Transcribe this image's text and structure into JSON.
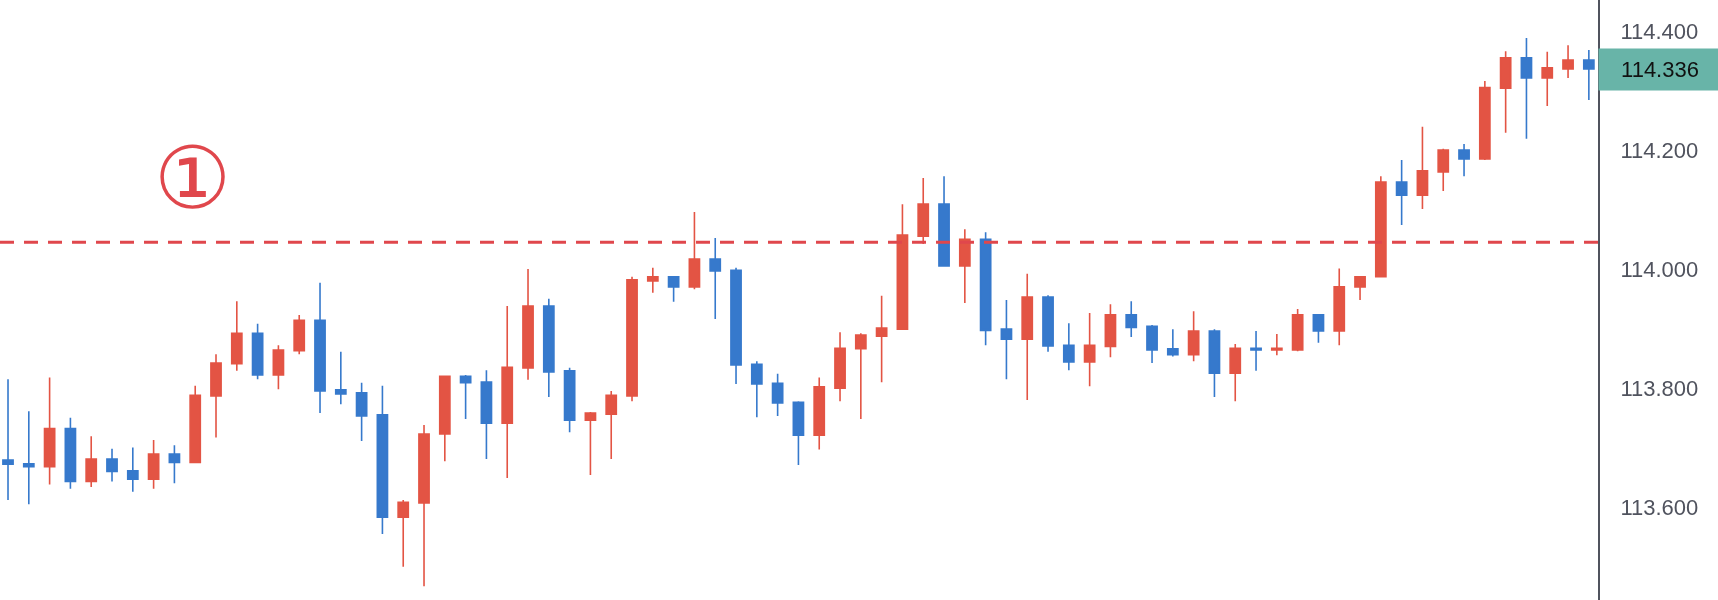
{
  "chart_data": {
    "type": "candlestick",
    "categories": [
      null,
      null,
      null,
      null,
      null,
      null,
      null,
      null,
      null,
      null,
      null,
      null,
      null,
      null,
      null,
      null,
      null,
      null,
      null,
      null,
      null,
      null,
      null,
      null,
      null,
      null,
      null,
      null,
      null,
      null,
      null,
      null,
      null,
      null,
      null,
      null,
      null,
      null,
      null,
      null,
      null,
      null,
      null,
      null,
      null,
      null,
      null,
      null,
      null,
      null,
      null,
      null,
      null,
      null,
      null,
      null,
      null,
      null,
      null,
      null,
      null,
      null,
      null,
      null,
      null,
      null,
      null,
      null,
      null,
      null,
      null,
      null,
      null,
      null,
      null,
      null,
      null
    ],
    "ohlc": [
      [
        113.679,
        113.815,
        113.612,
        113.672
      ],
      [
        113.673,
        113.761,
        113.605,
        113.668
      ],
      [
        113.668,
        113.818,
        113.638,
        113.732
      ],
      [
        113.732,
        113.75,
        113.631,
        113.643
      ],
      [
        113.643,
        113.719,
        113.634,
        113.681
      ],
      [
        113.681,
        113.698,
        113.643,
        113.66
      ],
      [
        113.661,
        113.7,
        113.626,
        113.647
      ],
      [
        113.647,
        113.713,
        113.631,
        113.689
      ],
      [
        113.689,
        113.704,
        113.64,
        113.675
      ],
      [
        113.675,
        113.804,
        113.674,
        113.788
      ],
      [
        113.787,
        113.857,
        113.717,
        113.842
      ],
      [
        113.841,
        113.946,
        113.829,
        113.892
      ],
      [
        113.892,
        113.908,
        113.815,
        113.822
      ],
      [
        113.822,
        113.872,
        113.798,
        113.864
      ],
      [
        113.863,
        113.923,
        113.857,
        113.914
      ],
      [
        113.914,
        113.977,
        113.758,
        113.795
      ],
      [
        113.797,
        113.861,
        113.773,
        113.79
      ],
      [
        113.792,
        113.809,
        113.711,
        113.753
      ],
      [
        113.755,
        113.804,
        113.555,
        113.583
      ],
      [
        113.583,
        113.612,
        113.5,
        113.608
      ],
      [
        113.607,
        113.738,
        113.467,
        113.723
      ],
      [
        113.723,
        113.82,
        113.677,
        113.82
      ],
      [
        113.82,
        113.822,
        113.748,
        113.809
      ],
      [
        113.81,
        113.83,
        113.681,
        113.741
      ],
      [
        113.741,
        113.938,
        113.649,
        113.835
      ],
      [
        113.834,
        114.0,
        113.814,
        113.938
      ],
      [
        113.938,
        113.95,
        113.785,
        113.827
      ],
      [
        113.829,
        113.834,
        113.726,
        113.746
      ],
      [
        113.746,
        113.76,
        113.654,
        113.758
      ],
      [
        113.756,
        113.795,
        113.681,
        113.788
      ],
      [
        113.787,
        113.987,
        113.778,
        113.982
      ],
      [
        113.98,
        114.002,
        113.96,
        113.987
      ],
      [
        113.987,
        113.987,
        113.945,
        113.97
      ],
      [
        113.97,
        114.096,
        113.966,
        114.017
      ],
      [
        114.017,
        114.052,
        113.916,
        113.997
      ],
      [
        113.998,
        114.002,
        113.807,
        113.839
      ],
      [
        113.84,
        113.845,
        113.751,
        113.807
      ],
      [
        113.808,
        113.824,
        113.753,
        113.775
      ],
      [
        113.776,
        113.778,
        113.671,
        113.721
      ],
      [
        113.721,
        113.818,
        113.697,
        113.802
      ],
      [
        113.8,
        113.894,
        113.778,
        113.867
      ],
      [
        113.866,
        113.892,
        113.748,
        113.889
      ],
      [
        113.887,
        113.955,
        113.81,
        113.901
      ],
      [
        113.899,
        114.109,
        113.899,
        114.057
      ],
      [
        114.055,
        114.153,
        114.042,
        114.109
      ],
      [
        114.109,
        114.156,
        114.005,
        114.005
      ],
      [
        114.005,
        114.067,
        113.943,
        114.05
      ],
      [
        114.05,
        114.062,
        113.872,
        113.897
      ],
      [
        113.899,
        113.948,
        113.815,
        113.882
      ],
      [
        113.882,
        113.992,
        113.78,
        113.953
      ],
      [
        113.953,
        113.956,
        113.861,
        113.871
      ],
      [
        113.872,
        113.909,
        113.83,
        113.844
      ],
      [
        113.844,
        113.926,
        113.803,
        113.872
      ],
      [
        113.87,
        113.941,
        113.852,
        113.923
      ],
      [
        113.923,
        113.946,
        113.886,
        113.902
      ],
      [
        113.904,
        113.906,
        113.842,
        113.864
      ],
      [
        113.866,
        113.899,
        113.853,
        113.856
      ],
      [
        113.856,
        113.929,
        113.845,
        113.896
      ],
      [
        113.896,
        113.899,
        113.785,
        113.825
      ],
      [
        113.825,
        113.874,
        113.778,
        113.867
      ],
      [
        113.867,
        113.896,
        113.829,
        113.864
      ],
      [
        113.864,
        113.891,
        113.855,
        113.867
      ],
      [
        113.864,
        113.933,
        113.862,
        113.923
      ],
      [
        113.923,
        113.923,
        113.876,
        113.896
      ],
      [
        113.896,
        114.001,
        113.872,
        113.97
      ],
      [
        113.97,
        113.988,
        113.948,
        113.987
      ],
      [
        113.987,
        114.156,
        113.987,
        114.146
      ],
      [
        114.146,
        114.183,
        114.074,
        114.124
      ],
      [
        114.124,
        114.239,
        114.101,
        114.165
      ],
      [
        114.163,
        114.202,
        114.131,
        114.2
      ],
      [
        114.2,
        114.21,
        114.156,
        114.185
      ],
      [
        114.185,
        114.316,
        114.183,
        114.305
      ],
      [
        114.304,
        114.366,
        114.229,
        114.355
      ],
      [
        114.355,
        114.388,
        114.219,
        114.321
      ],
      [
        114.321,
        114.365,
        114.274,
        114.338
      ],
      [
        114.336,
        114.376,
        114.321,
        114.351
      ],
      [
        114.351,
        114.368,
        114.284,
        114.336
      ]
    ],
    "colors": [
      "#3679cc",
      "#3679cc",
      "#e35444",
      "#3679cc",
      "#e35444",
      "#3679cc",
      "#3679cc",
      "#e35444",
      "#3679cc",
      "#e35444",
      "#e35444",
      "#e35444",
      "#3679cc",
      "#e35444",
      "#e35444",
      "#3679cc",
      "#3679cc",
      "#3679cc",
      "#3679cc",
      "#e35444",
      "#e35444",
      "#e35444",
      "#3679cc",
      "#3679cc",
      "#e35444",
      "#e35444",
      "#3679cc",
      "#3679cc",
      "#e35444",
      "#e35444",
      "#e35444",
      "#e35444",
      "#3679cc",
      "#e35444",
      "#3679cc",
      "#3679cc",
      "#3679cc",
      "#3679cc",
      "#3679cc",
      "#e35444",
      "#e35444",
      "#e35444",
      "#e35444",
      "#e35444",
      "#e35444",
      "#3679cc",
      "#e35444",
      "#3679cc",
      "#3679cc",
      "#e35444",
      "#3679cc",
      "#3679cc",
      "#e35444",
      "#e35444",
      "#3679cc",
      "#3679cc",
      "#3679cc",
      "#e35444",
      "#3679cc",
      "#e35444",
      "#3679cc",
      "#e35444",
      "#e35444",
      "#3679cc",
      "#e35444",
      "#e35444",
      "#e35444",
      "#3679cc",
      "#e35444",
      "#e35444",
      "#3679cc",
      "#e35444",
      "#e35444",
      "#3679cc",
      "#e35444",
      "#e35444",
      "#3679cc"
    ],
    "ylim": [
      113.444,
      114.452
    ],
    "yticks": [
      {
        "value": 113.6,
        "label": "113.600"
      },
      {
        "value": 113.8,
        "label": "113.800"
      },
      {
        "value": 114.0,
        "label": "114.000"
      },
      {
        "value": 114.2,
        "label": "114.200"
      },
      {
        "value": 114.4,
        "label": "114.400"
      }
    ],
    "ref_lines": [
      {
        "axis": "y",
        "value": 114.045,
        "color": "#e0474c",
        "line_style": "dashed"
      }
    ],
    "annotations": [
      "①",
      "114.336"
    ],
    "tick_labels": "y",
    "grid": false
  }
}
